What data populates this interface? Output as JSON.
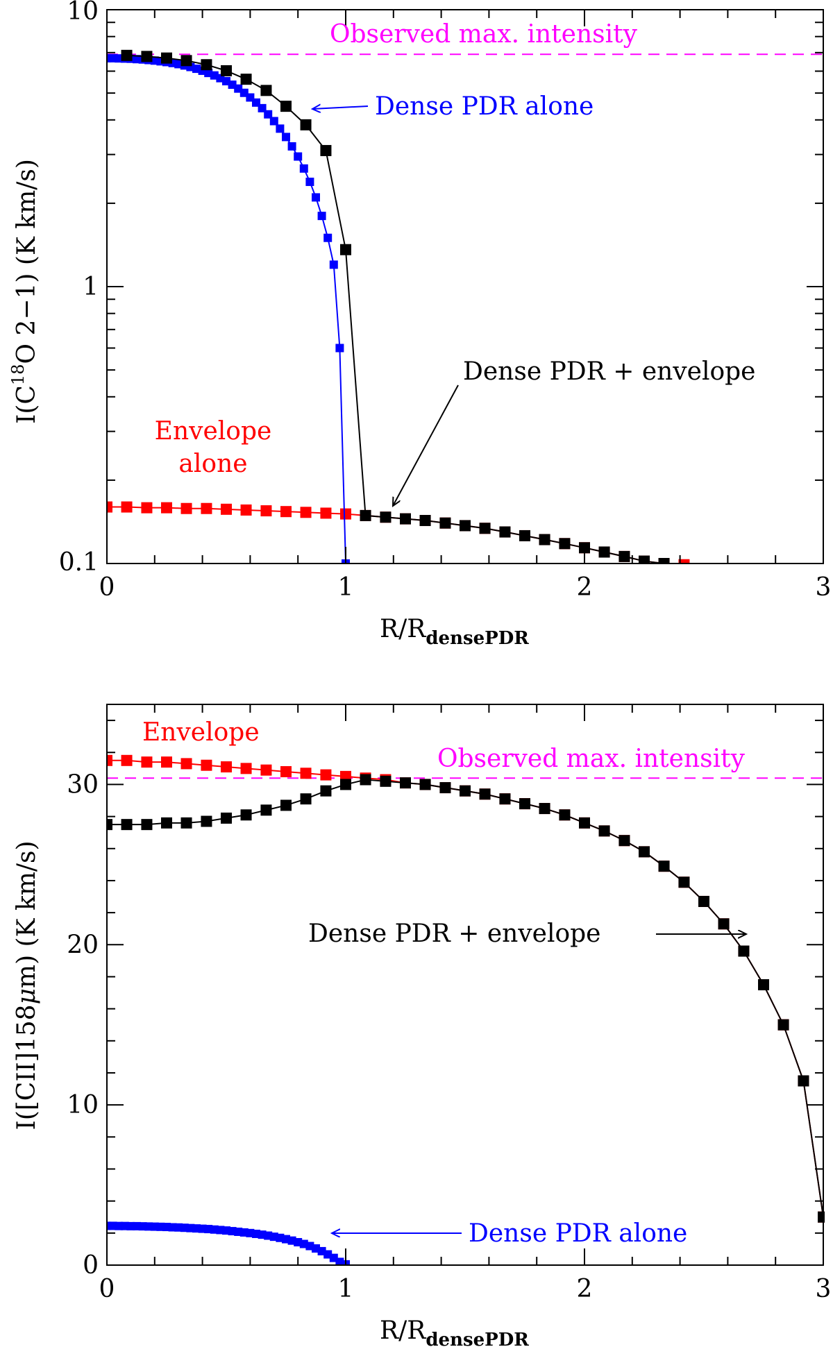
{
  "colors": {
    "axis": "#000000",
    "envelope": "#ff0000",
    "dense_pdr": "#0000ff",
    "combined": "#000000",
    "observed": "#ff00ff"
  },
  "chart_data": [
    {
      "id": "c18o",
      "type": "line",
      "yscale": "log",
      "xlim": [
        0,
        3
      ],
      "ylim": [
        0.1,
        10
      ],
      "xticks": [
        0,
        1,
        2,
        3
      ],
      "xtick_labels": [
        "0",
        "1",
        "2",
        "3"
      ],
      "yticks": [
        0.1,
        1,
        10
      ],
      "ytick_labels": [
        "0.1",
        "1",
        "10"
      ],
      "xlabel": {
        "main": "R/R",
        "sub": "densePDR"
      },
      "ylabel": {
        "pre": "I(C",
        "sup": "18",
        "post": "O 2−1)  (K km/s)"
      },
      "observed_max": {
        "value": 6.9,
        "label": "Observed max. intensity"
      },
      "series": [
        {
          "name": "Envelope alone",
          "color_key": "envelope",
          "marker": "square",
          "x": [
            0,
            0.083,
            0.167,
            0.25,
            0.333,
            0.417,
            0.5,
            0.583,
            0.667,
            0.75,
            0.833,
            0.917,
            1.0,
            1.083,
            1.167,
            1.25,
            1.333,
            1.417,
            1.5,
            1.583,
            1.667,
            1.75,
            1.833,
            1.917,
            2.0,
            2.083,
            2.167,
            2.25,
            2.333,
            2.417
          ],
          "y": [
            0.16,
            0.16,
            0.159,
            0.159,
            0.158,
            0.158,
            0.157,
            0.156,
            0.155,
            0.154,
            0.153,
            0.152,
            0.151,
            0.149,
            0.147,
            0.145,
            0.143,
            0.14,
            0.137,
            0.134,
            0.13,
            0.126,
            0.122,
            0.118,
            0.114,
            0.11,
            0.106,
            0.102,
            0.1,
            0.099
          ]
        },
        {
          "name": "Dense PDR alone",
          "color_key": "dense_pdr",
          "marker": "square",
          "x": [
            0.0,
            0.025,
            0.05,
            0.075,
            0.1,
            0.125,
            0.15,
            0.175,
            0.2,
            0.225,
            0.25,
            0.275,
            0.3,
            0.325,
            0.35,
            0.375,
            0.4,
            0.425,
            0.45,
            0.475,
            0.5,
            0.525,
            0.55,
            0.575,
            0.6,
            0.625,
            0.65,
            0.675,
            0.7,
            0.725,
            0.75,
            0.775,
            0.8,
            0.825,
            0.85,
            0.875,
            0.9,
            0.925,
            0.95,
            0.975,
            1.0
          ],
          "y": [
            6.68,
            6.68,
            6.67,
            6.66,
            6.65,
            6.63,
            6.61,
            6.58,
            6.55,
            6.51,
            6.47,
            6.42,
            6.36,
            6.29,
            6.21,
            6.12,
            6.02,
            5.91,
            5.79,
            5.66,
            5.52,
            5.36,
            5.19,
            5.01,
            4.82,
            4.62,
            4.41,
            4.19,
            3.96,
            3.72,
            3.47,
            3.21,
            2.95,
            2.67,
            2.39,
            2.1,
            1.8,
            1.5,
            1.2,
            0.6,
            0.1
          ]
        },
        {
          "name": "Dense PDR + envelope",
          "color_key": "combined",
          "marker": "square",
          "x": [
            0.083,
            0.167,
            0.25,
            0.333,
            0.417,
            0.5,
            0.583,
            0.667,
            0.75,
            0.833,
            0.917,
            1.0,
            1.083,
            1.167,
            1.25,
            1.333,
            1.417,
            1.5,
            1.583,
            1.667,
            1.75,
            1.833,
            1.917,
            2.0,
            2.083,
            2.167,
            2.25,
            2.333
          ],
          "y": [
            6.84,
            6.78,
            6.69,
            6.55,
            6.33,
            6.02,
            5.61,
            5.11,
            4.48,
            3.84,
            3.1,
            1.36,
            0.149,
            0.147,
            0.145,
            0.143,
            0.14,
            0.137,
            0.134,
            0.13,
            0.126,
            0.122,
            0.118,
            0.114,
            0.11,
            0.106,
            0.102,
            0.1
          ]
        }
      ],
      "annotations": {
        "dense_alone": "Dense PDR alone",
        "combined": "Dense PDR + envelope",
        "envelope_line1": "Envelope",
        "envelope_line2": "alone"
      }
    },
    {
      "id": "cii",
      "type": "line",
      "yscale": "linear",
      "xlim": [
        0,
        3
      ],
      "ylim": [
        0,
        35
      ],
      "xticks": [
        0,
        1,
        2,
        3
      ],
      "xtick_labels": [
        "0",
        "1",
        "2",
        "3"
      ],
      "yticks": [
        0,
        10,
        20,
        30
      ],
      "ytick_labels": [
        "0",
        "10",
        "20",
        "30"
      ],
      "xlabel": {
        "main": "R/R",
        "sub": "densePDR"
      },
      "ylabel": {
        "pre": "I([CII]158",
        "mu": "μ",
        "post": "m)  (K km/s)"
      },
      "observed_max": {
        "value": 30.4,
        "label": "Observed max. intensity"
      },
      "series": [
        {
          "name": "Envelope",
          "color_key": "envelope",
          "marker": "square",
          "x": [
            0,
            0.083,
            0.167,
            0.25,
            0.333,
            0.417,
            0.5,
            0.583,
            0.667,
            0.75,
            0.833,
            0.917,
            1.0,
            1.083,
            1.167,
            1.25,
            1.333,
            1.417,
            1.5,
            1.583,
            1.667,
            1.75,
            1.833,
            1.917,
            2.0,
            2.083,
            2.167,
            2.25,
            2.333,
            2.417,
            2.5,
            2.583,
            2.667,
            2.75,
            2.833,
            2.917,
            3.0
          ],
          "y": [
            31.5,
            31.5,
            31.4,
            31.4,
            31.3,
            31.2,
            31.1,
            31.0,
            30.9,
            30.8,
            30.7,
            30.6,
            30.5,
            30.4,
            30.3,
            30.1,
            30.0,
            29.8,
            29.6,
            29.4,
            29.1,
            28.8,
            28.5,
            28.1,
            27.6,
            27.1,
            26.5,
            25.8,
            24.9,
            23.9,
            22.7,
            21.3,
            19.6,
            17.5,
            15.0,
            11.5,
            3.0
          ]
        },
        {
          "name": "Dense PDR alone",
          "color_key": "dense_pdr",
          "marker": "square",
          "x": [
            0.0,
            0.025,
            0.05,
            0.075,
            0.1,
            0.125,
            0.15,
            0.175,
            0.2,
            0.225,
            0.25,
            0.275,
            0.3,
            0.325,
            0.35,
            0.375,
            0.4,
            0.425,
            0.45,
            0.475,
            0.5,
            0.525,
            0.55,
            0.575,
            0.6,
            0.625,
            0.65,
            0.675,
            0.7,
            0.725,
            0.75,
            0.775,
            0.8,
            0.825,
            0.85,
            0.875,
            0.9,
            0.925,
            0.95,
            0.975,
            1.0
          ],
          "y": [
            2.45,
            2.45,
            2.44,
            2.44,
            2.43,
            2.43,
            2.42,
            2.41,
            2.4,
            2.39,
            2.38,
            2.36,
            2.35,
            2.33,
            2.31,
            2.29,
            2.27,
            2.25,
            2.22,
            2.19,
            2.16,
            2.12,
            2.08,
            2.04,
            2.0,
            1.95,
            1.9,
            1.84,
            1.77,
            1.7,
            1.62,
            1.53,
            1.43,
            1.32,
            1.19,
            1.04,
            0.87,
            0.67,
            0.45,
            0.2,
            0.05
          ]
        },
        {
          "name": "Dense PDR + envelope",
          "color_key": "combined",
          "marker": "square",
          "x": [
            0,
            0.083,
            0.167,
            0.25,
            0.333,
            0.417,
            0.5,
            0.583,
            0.667,
            0.75,
            0.833,
            0.917,
            1.0,
            1.083,
            1.167,
            1.25,
            1.333,
            1.417,
            1.5,
            1.583,
            1.667,
            1.75,
            1.833,
            1.917,
            2.0,
            2.083,
            2.167,
            2.25,
            2.333,
            2.417,
            2.5,
            2.583,
            2.667,
            2.75,
            2.833,
            2.917,
            3.0
          ],
          "y": [
            27.5,
            27.5,
            27.5,
            27.6,
            27.6,
            27.7,
            27.9,
            28.1,
            28.4,
            28.7,
            29.1,
            29.6,
            30.0,
            30.3,
            30.2,
            30.1,
            30.0,
            29.8,
            29.6,
            29.4,
            29.1,
            28.8,
            28.5,
            28.1,
            27.6,
            27.1,
            26.5,
            25.8,
            24.9,
            23.9,
            22.7,
            21.3,
            19.6,
            17.5,
            15.0,
            11.5,
            3.0
          ]
        }
      ],
      "annotations": {
        "envelope": "Envelope",
        "combined": "Dense PDR + envelope",
        "dense_alone": "Dense PDR alone"
      }
    }
  ]
}
